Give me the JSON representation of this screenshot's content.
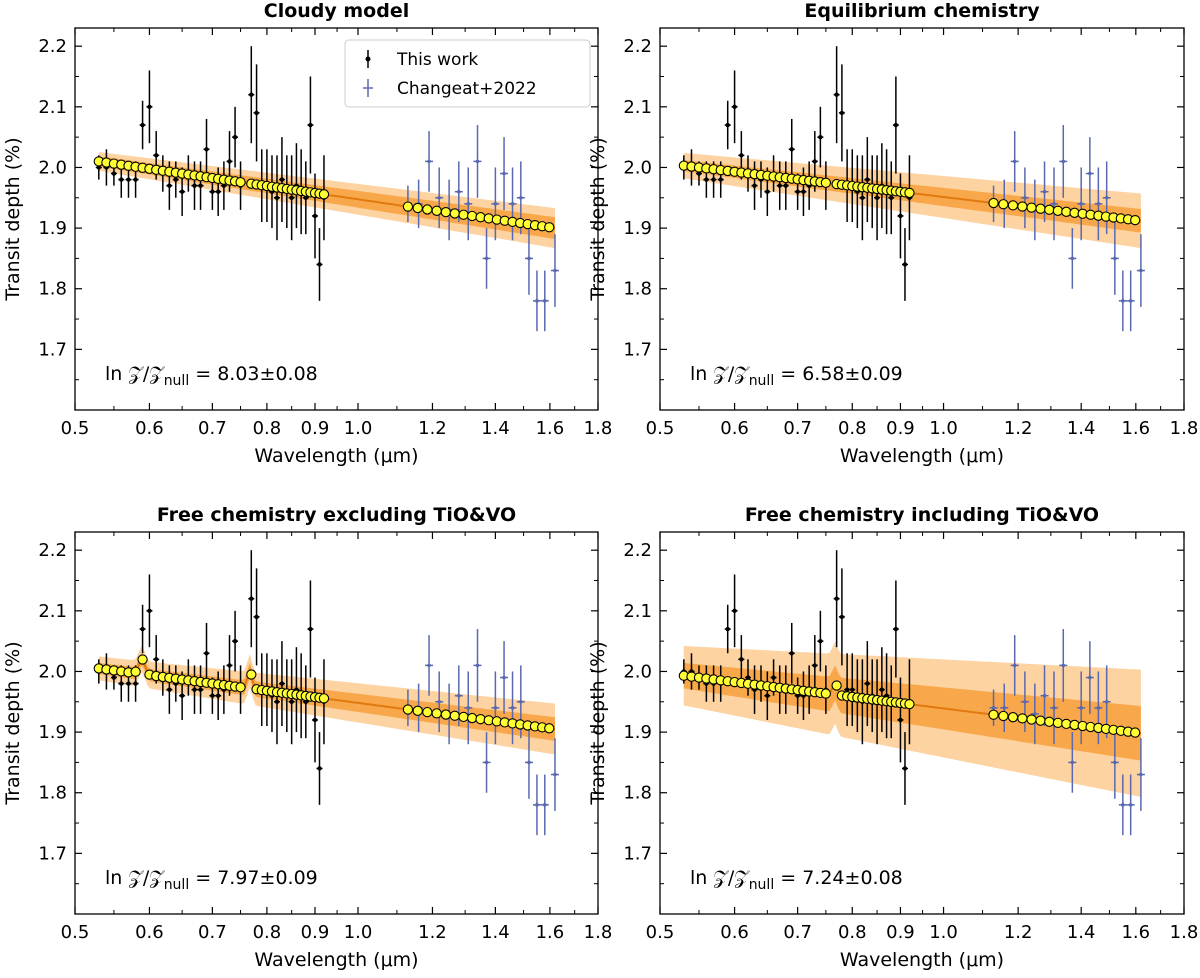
{
  "figure": {
    "legend": {
      "this_work": "This work",
      "changeat": "Changeat+2022"
    },
    "colors": {
      "this_work": "#000000",
      "changeat": "#5a68b0",
      "model_line": "#e07a10",
      "band_1sigma": "#f8a84a",
      "band_2sigma": "#fcd3a1",
      "binned_fill": "#ffff33",
      "binned_edge": "#000000"
    }
  },
  "chart_data": [
    {
      "type": "scatter",
      "title": "Cloudy model",
      "xlabel": "Wavelength (μm)",
      "ylabel": "Transit depth (%)",
      "xscale": "log",
      "xlim": [
        0.5,
        1.8
      ],
      "ylim": [
        1.6,
        2.23
      ],
      "xticks": [
        "0.5",
        "0.6",
        "0.7",
        "0.8",
        "0.9",
        "1.0",
        "1.2",
        "1.4",
        "1.6",
        "1.8"
      ],
      "yticks": [
        "1.7",
        "1.8",
        "1.9",
        "2.0",
        "2.1",
        "2.2"
      ],
      "annotation": {
        "prefix": "ln 𝒵/𝒵",
        "sub": "null",
        "value": " = 8.03±0.08"
      },
      "model": {
        "start": [
          0.53,
          2.01
        ],
        "end": [
          1.62,
          1.9
        ],
        "sigma1": 0.012,
        "sigma2": 0.022,
        "bumps": []
      }
    },
    {
      "type": "scatter",
      "title": "Equilibrium chemistry",
      "xlabel": "Wavelength (μm)",
      "ylabel": "Transit depth (%)",
      "xscale": "log",
      "xlim": [
        0.5,
        1.8
      ],
      "ylim": [
        1.6,
        2.23
      ],
      "xticks": [
        "0.5",
        "0.6",
        "0.7",
        "0.8",
        "0.9",
        "1.0",
        "1.2",
        "1.4",
        "1.6",
        "1.8"
      ],
      "yticks": [
        "1.7",
        "1.8",
        "1.9",
        "2.0",
        "2.1",
        "2.2"
      ],
      "annotation": {
        "prefix": "ln 𝒵/𝒵",
        "sub": "null",
        "value": " = 6.58±0.09"
      },
      "model": {
        "start": [
          0.53,
          2.003
        ],
        "end": [
          1.62,
          1.912
        ],
        "sigma1": 0.013,
        "sigma2": 0.03,
        "bumps": []
      }
    },
    {
      "type": "scatter",
      "title": "Free chemistry excluding TiO&VO",
      "xlabel": "Wavelength (μm)",
      "ylabel": "Transit depth (%)",
      "xscale": "log",
      "xlim": [
        0.5,
        1.8
      ],
      "ylim": [
        1.6,
        2.23
      ],
      "xticks": [
        "0.5",
        "0.6",
        "0.7",
        "0.8",
        "0.9",
        "1.0",
        "1.2",
        "1.4",
        "1.6",
        "1.8"
      ],
      "yticks": [
        "1.7",
        "1.8",
        "1.9",
        "2.0",
        "2.1",
        "2.2"
      ],
      "annotation": {
        "prefix": "ln 𝒵/𝒵",
        "sub": "null",
        "value": " = 7.97±0.09"
      },
      "model": {
        "start": [
          0.53,
          2.005
        ],
        "end": [
          1.62,
          1.905
        ],
        "sigma1": 0.013,
        "sigma2": 0.028,
        "bumps": [
          [
            0.589,
            0.025
          ],
          [
            0.767,
            0.03
          ]
        ]
      }
    },
    {
      "type": "scatter",
      "title": "Free chemistry including TiO&VO",
      "xlabel": "Wavelength (μm)",
      "ylabel": "Transit depth (%)",
      "xscale": "log",
      "xlim": [
        0.5,
        1.8
      ],
      "ylim": [
        1.6,
        2.23
      ],
      "xticks": [
        "0.5",
        "0.6",
        "0.7",
        "0.8",
        "0.9",
        "1.0",
        "1.2",
        "1.4",
        "1.6",
        "1.8"
      ],
      "yticks": [
        "1.7",
        "1.8",
        "1.9",
        "2.0",
        "2.1",
        "2.2"
      ],
      "annotation": {
        "prefix": "ln 𝒵/𝒵",
        "sub": "null",
        "value": " = 7.24±0.08"
      },
      "model": {
        "start": [
          0.53,
          1.993
        ],
        "end": [
          1.62,
          1.898
        ],
        "sigma1": 0.03,
        "sigma2": 0.07,
        "bumps": [
          [
            0.767,
            0.02
          ]
        ]
      }
    }
  ],
  "observations": {
    "this_work": {
      "x": [
        0.53,
        0.54,
        0.55,
        0.56,
        0.57,
        0.58,
        0.59,
        0.6,
        0.61,
        0.62,
        0.63,
        0.64,
        0.65,
        0.66,
        0.67,
        0.68,
        0.69,
        0.7,
        0.71,
        0.72,
        0.73,
        0.74,
        0.75,
        0.77,
        0.78,
        0.79,
        0.8,
        0.81,
        0.82,
        0.83,
        0.84,
        0.85,
        0.86,
        0.87,
        0.88,
        0.89,
        0.9,
        0.91,
        0.92
      ],
      "y": [
        2.0,
        2.0,
        1.99,
        1.98,
        1.98,
        1.98,
        2.07,
        2.1,
        2.02,
        1.99,
        1.97,
        1.98,
        1.96,
        1.99,
        1.97,
        1.97,
        2.03,
        1.96,
        1.96,
        1.97,
        2.01,
        2.05,
        1.97,
        2.12,
        2.09,
        1.97,
        1.97,
        1.96,
        1.95,
        1.98,
        1.96,
        1.95,
        1.97,
        1.96,
        1.95,
        2.07,
        1.92,
        1.84,
        1.95
      ],
      "err": [
        0.02,
        0.03,
        0.02,
        0.03,
        0.03,
        0.03,
        0.04,
        0.06,
        0.04,
        0.03,
        0.04,
        0.03,
        0.04,
        0.03,
        0.04,
        0.04,
        0.05,
        0.03,
        0.04,
        0.04,
        0.05,
        0.05,
        0.04,
        0.08,
        0.08,
        0.06,
        0.06,
        0.06,
        0.07,
        0.07,
        0.06,
        0.07,
        0.07,
        0.07,
        0.06,
        0.08,
        0.07,
        0.06,
        0.07
      ]
    },
    "changeat": {
      "x": [
        1.13,
        1.16,
        1.19,
        1.22,
        1.25,
        1.28,
        1.31,
        1.34,
        1.37,
        1.4,
        1.43,
        1.46,
        1.49,
        1.52,
        1.55,
        1.58,
        1.62
      ],
      "y": [
        1.94,
        1.94,
        2.01,
        1.95,
        1.93,
        1.96,
        1.94,
        2.01,
        1.85,
        1.94,
        1.99,
        1.94,
        1.95,
        1.85,
        1.78,
        1.78,
        1.83
      ],
      "err": [
        0.03,
        0.04,
        0.05,
        0.05,
        0.05,
        0.05,
        0.06,
        0.06,
        0.05,
        0.06,
        0.06,
        0.06,
        0.06,
        0.06,
        0.05,
        0.05,
        0.06
      ]
    }
  }
}
